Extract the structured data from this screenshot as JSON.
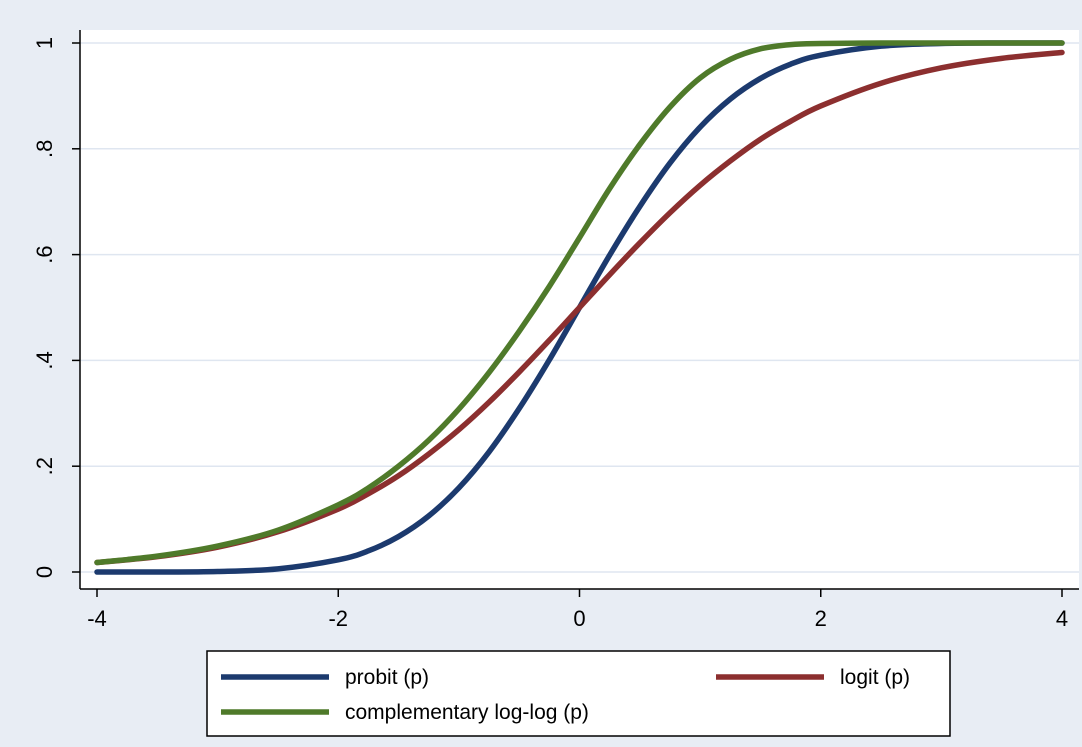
{
  "chart_data": {
    "type": "line",
    "title": "",
    "xlabel": "",
    "ylabel": "",
    "xlim": [
      -4,
      4
    ],
    "ylim": [
      0,
      1
    ],
    "x_ticks": [
      -4,
      -2,
      0,
      2,
      4
    ],
    "x_tick_labels": [
      "-4",
      "-2",
      "0",
      "2",
      "4"
    ],
    "y_ticks": [
      0,
      0.2,
      0.4,
      0.6,
      0.8,
      1
    ],
    "y_tick_labels": [
      "0",
      ".2",
      ".4",
      ".6",
      ".8",
      "1"
    ],
    "grid": true,
    "legend_position": "bottom",
    "x": [
      -4,
      -3.5,
      -3,
      -2.5,
      -2,
      -1.75,
      -1.5,
      -1.25,
      -1,
      -0.75,
      -0.5,
      -0.25,
      0,
      0.25,
      0.5,
      0.75,
      1,
      1.25,
      1.5,
      1.75,
      2,
      2.5,
      3,
      3.5,
      4
    ],
    "series": [
      {
        "name": "probit (p)",
        "color": "#1c3a6e",
        "values": [
          0.0,
          0.0,
          0.001,
          0.006,
          0.023,
          0.04,
          0.067,
          0.106,
          0.159,
          0.227,
          0.309,
          0.401,
          0.5,
          0.599,
          0.691,
          0.773,
          0.841,
          0.894,
          0.933,
          0.96,
          0.977,
          0.994,
          0.999,
          1.0,
          1.0
        ]
      },
      {
        "name": "logit (p)",
        "color": "#8c2f2f",
        "values": [
          0.018,
          0.029,
          0.047,
          0.076,
          0.119,
          0.148,
          0.182,
          0.223,
          0.269,
          0.321,
          0.378,
          0.438,
          0.5,
          0.562,
          0.622,
          0.679,
          0.731,
          0.777,
          0.818,
          0.852,
          0.881,
          0.924,
          0.953,
          0.971,
          0.982
        ]
      },
      {
        "name": "complementary log-log (p)",
        "color": "#4f7a2a",
        "values": [
          0.018,
          0.03,
          0.049,
          0.079,
          0.127,
          0.159,
          0.2,
          0.249,
          0.308,
          0.377,
          0.455,
          0.54,
          0.632,
          0.725,
          0.808,
          0.879,
          0.934,
          0.969,
          0.989,
          0.997,
          0.999,
          1.0,
          1.0,
          1.0,
          1.0
        ]
      }
    ]
  }
}
